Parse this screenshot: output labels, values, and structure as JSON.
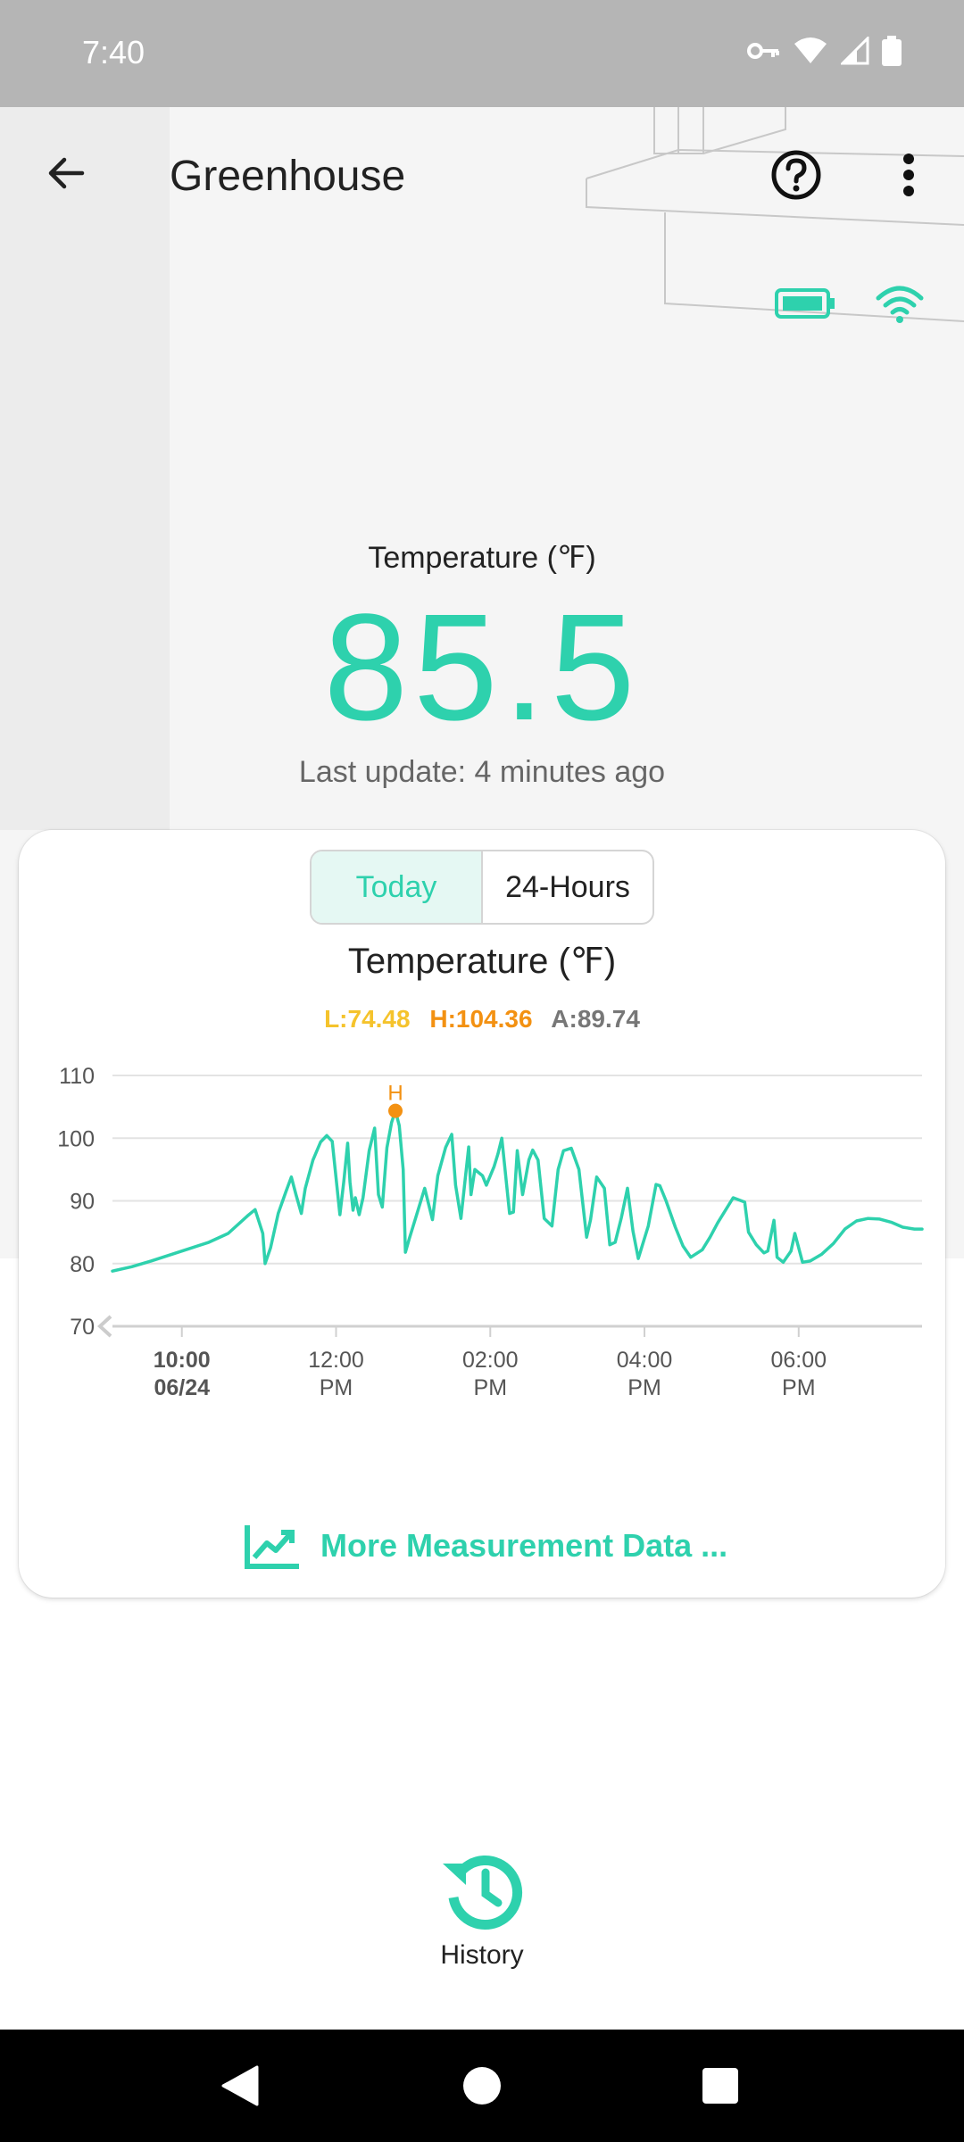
{
  "status_bar": {
    "time": "7:40"
  },
  "app_bar": {
    "title": "Greenhouse"
  },
  "colors": {
    "accent": "#2ed1ad",
    "low": "#f5c32c",
    "high": "#f39112",
    "avg": "#777777"
  },
  "reading": {
    "label": "Temperature (℉)",
    "value": "85.5",
    "last_update": "Last update: 4 minutes ago"
  },
  "card": {
    "tabs": [
      {
        "label": "Today",
        "active": true
      },
      {
        "label": "24-Hours",
        "active": false
      }
    ],
    "title": "Temperature (℉)",
    "stats": {
      "low": "L:74.48",
      "high": "H:104.36",
      "avg": "A:89.74"
    },
    "more_link": "More Measurement Data ..."
  },
  "chart_data": {
    "type": "line",
    "title": "Temperature (℉)",
    "ylim": [
      70,
      110
    ],
    "yticks": [
      70,
      80,
      90,
      100,
      110
    ],
    "xticks": [
      {
        "h": 10,
        "l1": "10:00",
        "l2": "06/24",
        "bold": true
      },
      {
        "h": 12,
        "l1": "12:00",
        "l2": "PM",
        "bold": false
      },
      {
        "h": 14,
        "l1": "02:00",
        "l2": "PM",
        "bold": false
      },
      {
        "h": 16,
        "l1": "04:00",
        "l2": "PM",
        "bold": false
      },
      {
        "h": 18,
        "l1": "06:00",
        "l2": "PM",
        "bold": false
      }
    ],
    "xlim": [
      9.1,
      19.6
    ],
    "high_marker": {
      "label": "H",
      "x": 12.77,
      "y": 104.36
    },
    "grid": true,
    "series": [
      {
        "x": [
          9.1,
          9.35,
          9.6,
          9.85,
          10.1,
          10.35,
          10.6,
          10.85,
          10.95,
          11.05,
          11.08,
          11.15,
          11.25,
          11.35,
          11.42,
          11.48,
          11.55,
          11.6,
          11.7,
          11.8,
          11.88,
          11.95,
          12.05,
          12.1,
          12.15,
          12.18,
          12.22,
          12.25,
          12.3,
          12.35,
          12.43,
          12.5,
          12.55,
          12.6,
          12.66,
          12.72,
          12.77,
          12.82,
          12.87,
          12.9,
          12.95,
          13.05,
          13.15,
          13.25,
          13.32,
          13.42,
          13.5,
          13.55,
          13.62,
          13.72,
          13.75,
          13.8,
          13.9,
          13.95,
          14.05,
          14.1,
          14.15,
          14.25,
          14.3,
          14.35,
          14.42,
          14.5,
          14.55,
          14.62,
          14.7,
          14.8,
          14.88,
          14.95,
          15.05,
          15.15,
          15.25,
          15.3,
          15.38,
          15.48,
          15.55,
          15.62,
          15.7,
          15.78,
          15.85,
          15.92,
          16.05,
          16.15,
          16.2,
          16.28,
          16.4,
          16.5,
          16.6,
          16.75,
          16.85,
          16.95,
          17.15,
          17.3,
          17.35,
          17.45,
          17.55,
          17.6,
          17.68,
          17.72,
          17.8,
          17.9,
          17.95,
          18.05,
          18.15,
          18.3,
          18.45,
          18.6,
          18.75,
          18.9,
          19.05,
          19.2,
          19.35,
          19.5,
          19.6
        ],
        "y": [
          78.8,
          79.5,
          80.4,
          81.4,
          82.4,
          83.4,
          84.8,
          87.6,
          88.6,
          84.8,
          80.0,
          82.5,
          88.0,
          91.5,
          93.8,
          91.0,
          88.0,
          92.0,
          96.5,
          99.4,
          100.4,
          99.5,
          87.8,
          93.0,
          99.2,
          93.0,
          88.5,
          90.5,
          87.8,
          90.5,
          98.0,
          101.6,
          91.0,
          89.0,
          98.5,
          102.5,
          104.36,
          102.0,
          95.0,
          81.8,
          84.0,
          88.0,
          92.0,
          87.0,
          94.0,
          98.5,
          100.6,
          92.5,
          87.2,
          98.6,
          91.0,
          95.0,
          94.0,
          92.5,
          95.5,
          97.5,
          100.0,
          88.0,
          88.2,
          98.0,
          91.0,
          96.5,
          98.1,
          96.5,
          87.2,
          86.0,
          95.0,
          98.0,
          98.4,
          95.0,
          84.2,
          87.0,
          93.8,
          92.0,
          83.0,
          83.4,
          87.3,
          92.0,
          85.2,
          80.8,
          86.0,
          92.6,
          92.4,
          90.0,
          85.8,
          82.8,
          81.0,
          82.2,
          84.2,
          86.5,
          90.5,
          89.8,
          85.0,
          83.0,
          81.7,
          82.0,
          86.9,
          81.0,
          80.2,
          82.0,
          84.8,
          80.2,
          80.4,
          81.5,
          83.2,
          85.5,
          86.8,
          87.2,
          87.1,
          86.6,
          85.8,
          85.5,
          85.5
        ]
      }
    ]
  },
  "history": {
    "label": "History"
  }
}
